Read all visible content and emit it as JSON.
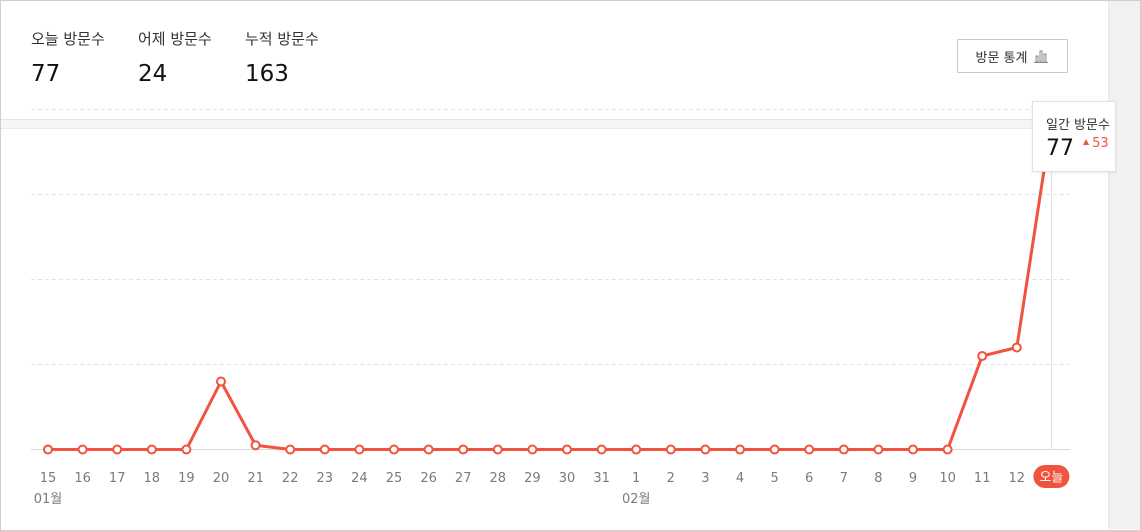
{
  "stats": [
    {
      "label": "오늘 방문수",
      "value": "77"
    },
    {
      "label": "어제 방문수",
      "value": "24"
    },
    {
      "label": "누적 방문수",
      "value": "163"
    }
  ],
  "stats_button": {
    "label": "방문 통계",
    "icon": "bar-chart-icon"
  },
  "tooltip": {
    "title": "일간 방문수",
    "value": "77",
    "delta": "53",
    "delta_icon": "up-triangle-icon"
  },
  "colors": {
    "line": "#f0533e",
    "grid": "#e4e4e4",
    "today_badge": "#f0533e"
  },
  "chart_data": {
    "type": "line",
    "categories": [
      "15",
      "16",
      "17",
      "18",
      "19",
      "20",
      "21",
      "22",
      "23",
      "24",
      "25",
      "26",
      "27",
      "28",
      "29",
      "30",
      "31",
      "1",
      "2",
      "3",
      "4",
      "5",
      "6",
      "7",
      "8",
      "9",
      "10",
      "11",
      "12",
      "오늘"
    ],
    "month_labels": [
      {
        "at": "15",
        "label": "01월"
      },
      {
        "at": "1",
        "label": "02월"
      }
    ],
    "series": [
      {
        "values": [
          0,
          0,
          0,
          0,
          0,
          16,
          1,
          0,
          0,
          0,
          0,
          0,
          0,
          0,
          0,
          0,
          0,
          0,
          0,
          0,
          0,
          0,
          0,
          0,
          0,
          0,
          0,
          22,
          24,
          77
        ]
      }
    ],
    "ylim": [
      0,
      80
    ],
    "grid": true,
    "highlighted": "오늘"
  }
}
